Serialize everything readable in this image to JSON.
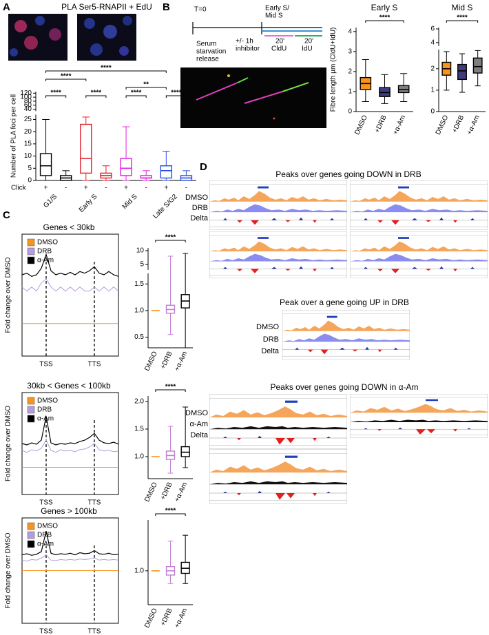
{
  "figure": {
    "panels": [
      "A",
      "B",
      "C",
      "D"
    ]
  },
  "diagram": {
    "t0": "T=0",
    "stage": [
      "Early S/",
      "Mid S"
    ],
    "release": [
      "Serum",
      "starvation",
      "release"
    ],
    "inhibitor": [
      "+/- 1h",
      "inhibitor"
    ],
    "cldu": [
      "20'",
      "CldU"
    ],
    "idu": [
      "20'",
      "IdU"
    ]
  },
  "browser": {
    "sections": [
      {
        "title": "Peaks over genes going DOWN in DRB",
        "tracks": [
          "DMSO",
          "DRB",
          "Delta"
        ]
      },
      {
        "title": "Peak over a gene going UP in DRB",
        "tracks": [
          "DMSO",
          "DRB",
          "Delta"
        ]
      },
      {
        "title": "Peaks over genes going DOWN in α-Am",
        "tracks": [
          "DMSO",
          "α-Am",
          "Delta"
        ]
      }
    ]
  },
  "chart_data": [
    {
      "type": "box",
      "title": "PLA Ser5-RNAPII + EdU",
      "y_label": "Number of PLA foci per cell",
      "row_label": "Click",
      "categories": [
        "+",
        "-",
        "+",
        "-",
        "+",
        "-",
        "+",
        "-"
      ],
      "groups": [
        "G1/S",
        "Early S",
        "Mid S",
        "Late S/G2"
      ],
      "colors": [
        "#000000",
        "#000000",
        "#e0202a",
        "#e0202a",
        "#e020e0",
        "#e020e0",
        "#2a4de0",
        "#2a4de0"
      ],
      "box_style": "hollow",
      "stats": {
        "min": [
          0,
          0,
          0,
          0,
          0,
          0,
          0,
          0
        ],
        "q1": [
          2,
          0,
          3,
          1,
          2,
          1,
          1,
          0
        ],
        "median": [
          6,
          1,
          9,
          2,
          5,
          1,
          4,
          1
        ],
        "q3": [
          11,
          2,
          23,
          3,
          9,
          2,
          6,
          2
        ],
        "max": [
          25,
          4,
          26,
          6,
          22,
          4,
          12,
          4
        ]
      },
      "segments": [
        {
          "ylim": [
            0,
            27
          ],
          "yticks": [
            0,
            5,
            10,
            15,
            20,
            25
          ]
        },
        {
          "ylim": [
            30,
            128
          ],
          "yticks": [
            40,
            60,
            80,
            100,
            120
          ]
        }
      ],
      "annotations": [
        {
          "text": "****",
          "from": 0,
          "to": 1
        },
        {
          "text": "****",
          "from": 2,
          "to": 3
        },
        {
          "text": "****",
          "from": 4,
          "to": 5
        },
        {
          "text": "****",
          "from": 6,
          "to": 7
        },
        {
          "text": "**",
          "from": 4,
          "to": 6
        },
        {
          "text": "****",
          "from": 0,
          "to": 2
        },
        {
          "text": "****",
          "from": 0,
          "to": 6
        }
      ]
    },
    {
      "type": "box",
      "title": "Early S",
      "y_label": "Fibre length µm (CldU+IdU)",
      "categories": [
        "DMSO",
        "+DRB",
        "+α-Am"
      ],
      "colors": [
        "#f7941d",
        "#3f3d7c",
        "#7f7f7f"
      ],
      "box_style": "filled",
      "stats": {
        "min": [
          0.5,
          0.4,
          0.5
        ],
        "q1": [
          1.1,
          0.75,
          0.95
        ],
        "median": [
          1.4,
          0.95,
          1.1
        ],
        "q3": [
          1.7,
          1.2,
          1.3
        ],
        "max": [
          2.6,
          1.85,
          1.9
        ]
      },
      "ylim": [
        0,
        4.2
      ],
      "yticks": [
        0,
        1,
        2,
        3,
        4
      ],
      "annotations": [
        {
          "text": "****",
          "from": 0,
          "to": 2
        }
      ]
    },
    {
      "type": "box",
      "title": "Mid S",
      "categories": [
        "DMSO",
        "+DRB",
        "+α-Am"
      ],
      "colors": [
        "#f7941d",
        "#3f3d7c",
        "#7f7f7f"
      ],
      "box_style": "filled",
      "stats": {
        "min": [
          1.0,
          0.9,
          1.2
        ],
        "q1": [
          1.7,
          1.5,
          1.8
        ],
        "median": [
          2.0,
          1.9,
          2.1
        ],
        "q3": [
          2.3,
          2.2,
          2.5
        ],
        "max": [
          2.8,
          2.7,
          2.85
        ]
      },
      "segments": [
        {
          "ylim": [
            0,
            2.9
          ],
          "yticks": [
            0,
            1,
            2
          ]
        },
        {
          "ylim": [
            3.5,
            6.2
          ],
          "yticks": [
            4,
            6
          ]
        }
      ],
      "annotations": [
        {
          "text": "****",
          "from": 0,
          "to": 2
        }
      ]
    },
    {
      "type": "line",
      "title": "Genes < 30kb",
      "y_label": "Fold change over DMSO",
      "categories": [
        null,
        null,
        null,
        null,
        null,
        "TSS",
        null,
        null,
        null,
        null,
        null,
        null,
        null,
        null,
        null,
        "TTS",
        null,
        null,
        null,
        null,
        null
      ],
      "ylim": [
        0.96,
        1.11
      ],
      "series": [
        {
          "name": "DMSO",
          "color": "#f7941d",
          "values": [
            1,
            1,
            1,
            1,
            1,
            1,
            1,
            1,
            1,
            1,
            1,
            1,
            1,
            1,
            1,
            1,
            1,
            1,
            1,
            1,
            1
          ]
        },
        {
          "name": "DRB",
          "color": "#b39ddb",
          "values": [
            1.045,
            1.04,
            1.045,
            1.04,
            1.05,
            1.055,
            1.045,
            1.04,
            1.045,
            1.04,
            1.045,
            1.04,
            1.045,
            1.04,
            1.04,
            1.045,
            1.04,
            1.045,
            1.04,
            1.045,
            1.04
          ]
        },
        {
          "name": "α-Am",
          "color": "#000000",
          "values": [
            1.06,
            1.062,
            1.058,
            1.06,
            1.068,
            1.085,
            1.065,
            1.06,
            1.062,
            1.06,
            1.063,
            1.06,
            1.064,
            1.062,
            1.065,
            1.07,
            1.062,
            1.06,
            1.064,
            1.06,
            1.058
          ]
        }
      ]
    },
    {
      "type": "box",
      "categories": [
        "DMSO",
        "+DRB",
        "+α-Am"
      ],
      "colors": [
        "#f7941d",
        "#c080d0",
        "#000000"
      ],
      "box_style": "hollow",
      "stats": {
        "min": [
          1,
          0.55,
          0.3
        ],
        "q1": [
          1,
          0.95,
          1.05
        ],
        "median": [
          1,
          1.02,
          1.18
        ],
        "q3": [
          1,
          1.1,
          1.3
        ],
        "max": [
          1,
          8,
          9
        ]
      },
      "segments": [
        {
          "ylim": [
            0.3,
            1.7
          ],
          "yticks": [
            {
              "value": 0.5,
              "label": "0.5"
            },
            {
              "value": 1,
              "label": "1.0"
            },
            {
              "value": 1.5,
              "label": "1.5"
            }
          ]
        },
        {
          "ylim": [
            3,
            11
          ],
          "yticks": [
            5,
            10
          ]
        }
      ],
      "annotations": [
        {
          "text": "****",
          "from": 0,
          "to": 2
        }
      ]
    },
    {
      "type": "line",
      "title": "30kb < Genes < 100kb",
      "y_label": "Fold change over DMSO",
      "categories": [
        null,
        null,
        null,
        null,
        null,
        "TSS",
        null,
        null,
        null,
        null,
        null,
        null,
        null,
        null,
        null,
        "TTS",
        null,
        null,
        null,
        null,
        null
      ],
      "ylim": [
        0.96,
        1.11
      ],
      "series": [
        {
          "name": "DMSO",
          "color": "#f7941d",
          "values": [
            1,
            1,
            1,
            1,
            1,
            1,
            1,
            1,
            1,
            1,
            1,
            1,
            1,
            1,
            1,
            1,
            1,
            1,
            1,
            1,
            1
          ]
        },
        {
          "name": "DRB",
          "color": "#b39ddb",
          "values": [
            1.025,
            1.022,
            1.026,
            1.024,
            1.028,
            1.04,
            1.025,
            1.022,
            1.026,
            1.024,
            1.025,
            1.023,
            1.026,
            1.027,
            1.03,
            1.035,
            1.026,
            1.024,
            1.025,
            1.023,
            1.024
          ]
        },
        {
          "name": "α-Am",
          "color": "#000000",
          "values": [
            1.035,
            1.033,
            1.036,
            1.034,
            1.04,
            1.075,
            1.036,
            1.033,
            1.035,
            1.034,
            1.036,
            1.035,
            1.038,
            1.04,
            1.044,
            1.05,
            1.04,
            1.036,
            1.035,
            1.037,
            1.034
          ]
        }
      ]
    },
    {
      "type": "box",
      "categories": [
        "DMSO",
        "+DRB",
        "+α-Am"
      ],
      "colors": [
        "#f7941d",
        "#c080d0",
        "#000000"
      ],
      "box_style": "hollow",
      "stats": {
        "min": [
          1,
          0.7,
          0.8
        ],
        "q1": [
          1,
          0.95,
          1.0
        ],
        "median": [
          1,
          1.02,
          1.08
        ],
        "q3": [
          1,
          1.1,
          1.18
        ],
        "max": [
          1,
          1.55,
          1.9
        ]
      },
      "ylim": [
        0.6,
        2.1
      ],
      "yticks": [
        {
          "value": 1,
          "label": "1.0"
        },
        {
          "value": 1.5,
          "label": "1.5"
        },
        {
          "value": 2,
          "label": "2.0"
        }
      ],
      "annotations": [
        {
          "text": "****",
          "from": 0,
          "to": 2
        }
      ]
    },
    {
      "type": "line",
      "title": "Genes > 100kb",
      "y_label": "Fold change over DMSO",
      "categories": [
        null,
        null,
        null,
        null,
        null,
        "TSS",
        null,
        null,
        null,
        null,
        null,
        null,
        null,
        null,
        null,
        "TTS",
        null,
        null,
        null,
        null,
        null
      ],
      "ylim": [
        0.9,
        1.1
      ],
      "series": [
        {
          "name": "DMSO",
          "color": "#f7941d",
          "values": [
            1,
            1,
            1,
            1,
            1,
            1,
            1,
            1,
            1,
            1,
            1,
            1,
            1,
            1,
            1,
            1,
            1,
            1,
            1,
            1,
            1
          ]
        },
        {
          "name": "DRB",
          "color": "#b39ddb",
          "values": [
            1.02,
            1.018,
            1.021,
            1.02,
            1.024,
            1.03,
            1.02,
            1.019,
            1.021,
            1.02,
            1.021,
            1.02,
            1.022,
            1.021,
            1.022,
            1.024,
            1.02,
            1.021,
            1.02,
            1.021,
            1.02
          ]
        },
        {
          "name": "α-Am",
          "color": "#000000",
          "values": [
            1.03,
            1.032,
            1.029,
            1.031,
            1.036,
            1.075,
            1.033,
            1.03,
            1.032,
            1.031,
            1.033,
            1.03,
            1.034,
            1.032,
            1.033,
            1.038,
            1.032,
            1.031,
            1.033,
            1.03,
            1.031
          ]
        }
      ]
    },
    {
      "type": "box",
      "categories": [
        "DMSO",
        "+DRB",
        "+α-Am"
      ],
      "colors": [
        "#f7941d",
        "#c080d0",
        "#000000"
      ],
      "box_style": "hollow",
      "stats": {
        "min": [
          1,
          0.85,
          0.85
        ],
        "q1": [
          1,
          0.95,
          0.97
        ],
        "median": [
          1,
          1.0,
          1.03
        ],
        "q3": [
          1,
          1.05,
          1.1
        ],
        "max": [
          1,
          1.35,
          1.42
        ]
      },
      "ylim": [
        0.6,
        1.6
      ],
      "yticks": [
        {
          "value": 1,
          "label": "1.0"
        }
      ],
      "annotations": [
        {
          "text": "****",
          "from": 0,
          "to": 2
        }
      ]
    }
  ]
}
